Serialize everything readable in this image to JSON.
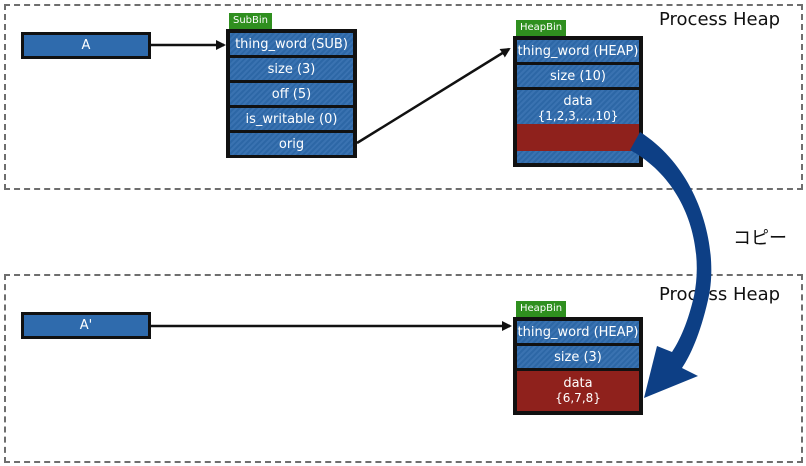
{
  "top_heap": {
    "title": "Process Heap",
    "var_label": "A",
    "subbin": {
      "tag": "SubBin",
      "fields": [
        "thing_word (SUB)",
        "size (3)",
        "off (5)",
        "is_writable (0)",
        "orig"
      ]
    },
    "heapbin": {
      "tag": "HeapBin",
      "fields": [
        "thing_word (HEAP)",
        "size (10)"
      ],
      "data_label": "data",
      "data_value": "{1,2,3,…,10}"
    }
  },
  "copy_label": "コピー",
  "bottom_heap": {
    "title": "Process Heap",
    "var_label": "A'",
    "heapbin": {
      "tag": "HeapBin",
      "fields": [
        "thing_word (HEAP)",
        "size (3)"
      ],
      "data_label": "data",
      "data_value": "{6,7,8}"
    }
  },
  "colors": {
    "field_blue": "#2f6bad",
    "data_red": "#8f211c",
    "tag_green": "#2f8f1f",
    "copy_arrow": "#0d3f85"
  }
}
